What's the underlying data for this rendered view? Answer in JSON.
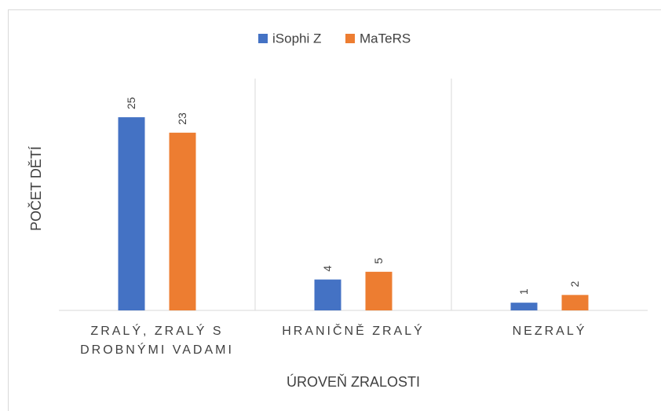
{
  "chart_data": {
    "type": "bar",
    "categories": [
      "ZRALÝ, ZRALÝ S DROBNÝMI VADAMI",
      "HRANIČNĚ ZRALÝ",
      "NEZRALÝ"
    ],
    "series": [
      {
        "name": "iSophi Z",
        "color": "#4472c4",
        "values": [
          25,
          4,
          1
        ]
      },
      {
        "name": "MaTeRS",
        "color": "#ed7d31",
        "values": [
          23,
          5,
          2
        ]
      }
    ],
    "xlabel": "ÚROVEŇ ZRALOSTI",
    "ylabel": "POČET DĚTÍ",
    "ylim": [
      0,
      30
    ],
    "legend": "top"
  }
}
